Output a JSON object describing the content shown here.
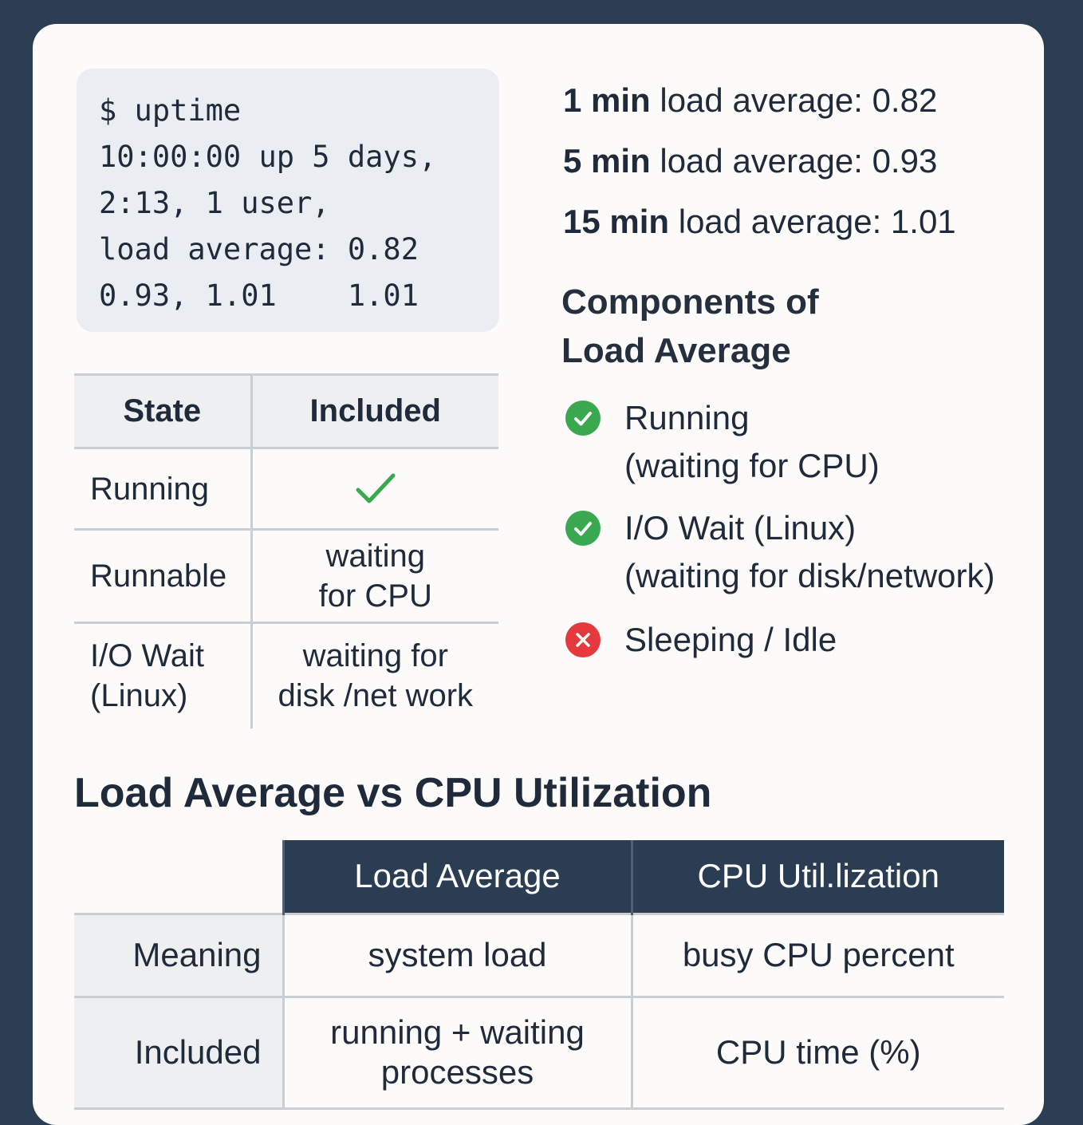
{
  "terminal": {
    "lines": [
      "$ uptime",
      "10:00:00 up 5 days,",
      "2:13, 1 user,",
      "load average: 0.82",
      "0.93, 1.01    1.01"
    ]
  },
  "state_table": {
    "headers": [
      "State",
      "Included"
    ],
    "rows": [
      {
        "state": "Running",
        "included": "",
        "included_icon": "checkmark-icon"
      },
      {
        "state": "Runnable",
        "included_lines": [
          "waiting",
          "for CPU"
        ]
      },
      {
        "state_lines": [
          "I/O Wait",
          "(Linux)"
        ],
        "included_lines": [
          "waiting for",
          "disk /net work"
        ]
      }
    ]
  },
  "load_averages": [
    {
      "label_bold": "1 min",
      "label_rest": " load average: 0.82"
    },
    {
      "label_bold": "5 min",
      "label_rest": " load average: 0.93"
    },
    {
      "label_bold": "15 min",
      "label_rest": " load average: 1.01"
    }
  ],
  "components": {
    "title_lines": [
      "Components of",
      "Load Average"
    ],
    "items": [
      {
        "icon": "check-circle-icon",
        "status": "included",
        "lines": [
          "Running",
          "(waiting for CPU)"
        ]
      },
      {
        "icon": "check-circle-icon",
        "status": "included",
        "lines": [
          "I/O Wait (Linux)",
          "(waiting for disk/network)"
        ]
      },
      {
        "icon": "x-circle-icon",
        "status": "excluded",
        "lines": [
          "Sleeping / Idle"
        ]
      }
    ],
    "colors": {
      "ok": "#3aa84f",
      "no": "#e5393e"
    }
  },
  "comparison": {
    "title": "Load Average vs CPU Utilization",
    "headers": [
      "Load Average",
      "CPU Util.lization"
    ],
    "rows": [
      {
        "label": "Meaning",
        "load": [
          "system load"
        ],
        "cpu": [
          "busy CPU percent"
        ]
      },
      {
        "label": "Included",
        "load": [
          "running + waiting",
          "processes"
        ],
        "cpu": [
          "CPU time (%)"
        ]
      }
    ],
    "header_color": "#2b3d52"
  }
}
